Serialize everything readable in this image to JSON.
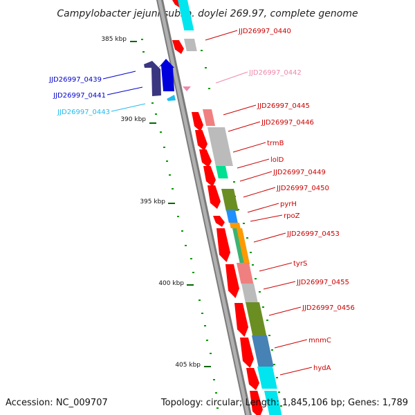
{
  "map": {
    "title": "Campylobacter jejuni subsp. doylei 269.97, complete genome",
    "accession_text": "Accession: NC_009707",
    "summary_text": "Topology: circular; Length: 1,845,106 bp; Genes: 1,789"
  },
  "scale": {
    "ticks": [
      {
        "label": "385 kbp"
      },
      {
        "label": "390 kbp"
      },
      {
        "label": "395 kbp"
      },
      {
        "label": "400 kbp"
      },
      {
        "label": "405 kbp"
      }
    ]
  },
  "colors": {
    "cds_red": "#ff0000",
    "backbone": "#888888",
    "tick_green": "#006600",
    "blue_dark": "#0000cc",
    "navy": "#3b3680",
    "light_blue": "#22bbee",
    "pink": "#ee88aa",
    "label_red": "#cc0000"
  },
  "genes": [
    {
      "label": "JJD26997_0440",
      "color": "#cc0000"
    },
    {
      "label": "JJD26997_0442",
      "color": "#ee88aa"
    },
    {
      "label": "JJD26997_0439",
      "color": "#0000cc"
    },
    {
      "label": "JJD26997_0441",
      "color": "#0000cc"
    },
    {
      "label": "JJD26997_0443",
      "color": "#22bbee"
    },
    {
      "label": "JJD26997_0445",
      "color": "#cc0000"
    },
    {
      "label": "JJD26997_0446",
      "color": "#cc0000"
    },
    {
      "label": "trmB",
      "color": "#cc0000"
    },
    {
      "label": "lolD",
      "color": "#cc0000"
    },
    {
      "label": "JJD26997_0449",
      "color": "#cc0000"
    },
    {
      "label": "JJD26997_0450",
      "color": "#cc0000"
    },
    {
      "label": "pyrH",
      "color": "#cc0000"
    },
    {
      "label": "rpoZ",
      "color": "#cc0000"
    },
    {
      "label": "JJD26997_0453",
      "color": "#cc0000"
    },
    {
      "label": "tyrS",
      "color": "#cc0000"
    },
    {
      "label": "JJD26997_0455",
      "color": "#cc0000"
    },
    {
      "label": "JJD26997_0456",
      "color": "#cc0000"
    },
    {
      "label": "mnmC",
      "color": "#cc0000"
    },
    {
      "label": "hydA",
      "color": "#cc0000"
    }
  ],
  "cog_segment_colors": [
    "#00e5ee",
    "#bbbbbb",
    "#f08080",
    "#00e090",
    "#6b8e23",
    "#1e90ff",
    "#ff9900",
    "#3cb371",
    "#4682b4"
  ]
}
